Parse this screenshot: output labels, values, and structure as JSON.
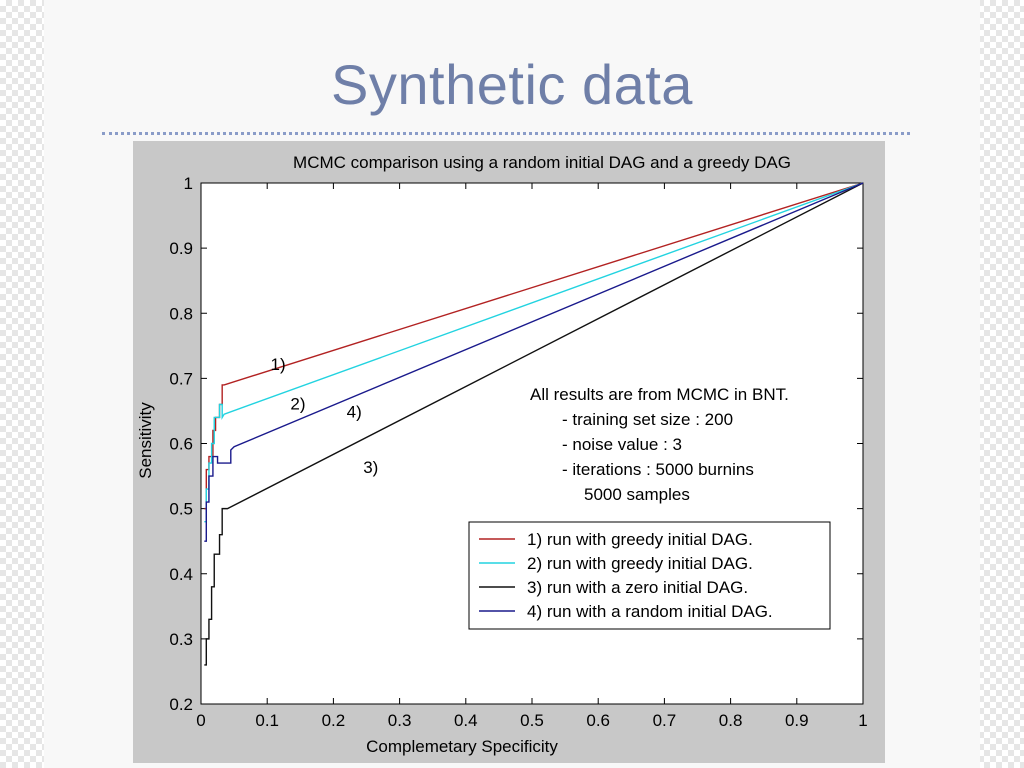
{
  "slide": {
    "title": "Synthetic data"
  },
  "colors": {
    "series_1": "#b22222",
    "series_2": "#22d3e0",
    "series_3": "#111111",
    "series_4": "#1a1a8c",
    "panel_bg": "#c8c8c8",
    "plot_bg": "#ffffff",
    "title_color": "#6f7fa8"
  },
  "annotation": {
    "lines": [
      "All results are from MCMC in BNT.",
      "- training set size : 200",
      "- noise value : 3",
      "- iterations : 5000 burnins",
      "5000 samples"
    ]
  },
  "chart_data": {
    "type": "line",
    "title": "MCMC comparison using a random initial DAG and a greedy DAG",
    "xlabel": "Complemetary Specificity",
    "ylabel": "Sensitivity",
    "xlim": [
      0,
      1
    ],
    "ylim": [
      0.2,
      1
    ],
    "xticks": [
      "0",
      "0.1",
      "0.2",
      "0.3",
      "0.4",
      "0.5",
      "0.6",
      "0.7",
      "0.8",
      "0.9",
      "1"
    ],
    "yticks": [
      "0.2",
      "0.3",
      "0.4",
      "0.5",
      "0.6",
      "0.7",
      "0.8",
      "0.9",
      "1"
    ],
    "grid": false,
    "legend_position": "bottom-right",
    "series": [
      {
        "name": "1) run with greedy initial DAG.",
        "label": "1)",
        "color": "#b22222",
        "points": [
          [
            0.005,
            0.5
          ],
          [
            0.008,
            0.5
          ],
          [
            0.008,
            0.56
          ],
          [
            0.012,
            0.56
          ],
          [
            0.012,
            0.58
          ],
          [
            0.018,
            0.58
          ],
          [
            0.018,
            0.62
          ],
          [
            0.022,
            0.62
          ],
          [
            0.022,
            0.64
          ],
          [
            0.028,
            0.64
          ],
          [
            0.028,
            0.66
          ],
          [
            0.032,
            0.66
          ],
          [
            0.032,
            0.69
          ],
          [
            0.035,
            0.69
          ],
          [
            1.0,
            1.0
          ]
        ]
      },
      {
        "name": "2) run with greedy initial DAG.",
        "label": "2)",
        "color": "#22d3e0",
        "points": [
          [
            0.005,
            0.48
          ],
          [
            0.008,
            0.48
          ],
          [
            0.008,
            0.53
          ],
          [
            0.012,
            0.53
          ],
          [
            0.012,
            0.57
          ],
          [
            0.016,
            0.57
          ],
          [
            0.016,
            0.6
          ],
          [
            0.02,
            0.6
          ],
          [
            0.02,
            0.64
          ],
          [
            0.028,
            0.64
          ],
          [
            0.028,
            0.66
          ],
          [
            0.032,
            0.66
          ],
          [
            0.032,
            0.64
          ],
          [
            0.035,
            0.645
          ],
          [
            1.0,
            1.0
          ]
        ]
      },
      {
        "name": "3) run with a zero initial DAG.",
        "label": "3)",
        "color": "#111111",
        "points": [
          [
            0.005,
            0.26
          ],
          [
            0.008,
            0.26
          ],
          [
            0.008,
            0.3
          ],
          [
            0.012,
            0.3
          ],
          [
            0.012,
            0.33
          ],
          [
            0.016,
            0.33
          ],
          [
            0.016,
            0.38
          ],
          [
            0.02,
            0.38
          ],
          [
            0.02,
            0.43
          ],
          [
            0.028,
            0.43
          ],
          [
            0.028,
            0.46
          ],
          [
            0.032,
            0.46
          ],
          [
            0.032,
            0.5
          ],
          [
            0.04,
            0.5
          ],
          [
            1.0,
            1.0
          ]
        ]
      },
      {
        "name": "4) run with a random initial DAG.",
        "label": "4)",
        "color": "#1a1a8c",
        "points": [
          [
            0.005,
            0.45
          ],
          [
            0.008,
            0.45
          ],
          [
            0.008,
            0.51
          ],
          [
            0.012,
            0.51
          ],
          [
            0.012,
            0.55
          ],
          [
            0.018,
            0.55
          ],
          [
            0.018,
            0.58
          ],
          [
            0.025,
            0.58
          ],
          [
            0.025,
            0.57
          ],
          [
            0.045,
            0.57
          ],
          [
            0.045,
            0.59
          ],
          [
            0.05,
            0.595
          ],
          [
            1.0,
            1.0
          ]
        ]
      }
    ],
    "series_labels": [
      {
        "text": "1)",
        "x": 0.105,
        "y": 0.713
      },
      {
        "text": "2)",
        "x": 0.135,
        "y": 0.652
      },
      {
        "text": "4)",
        "x": 0.22,
        "y": 0.64
      },
      {
        "text": "3)",
        "x": 0.245,
        "y": 0.555
      }
    ]
  }
}
